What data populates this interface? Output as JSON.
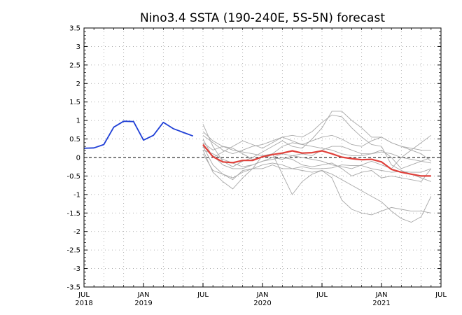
{
  "chart_data": {
    "type": "line",
    "title": "Nino3.4 SSTA (190-240E, 5S-5N) forecast",
    "xlabel": "",
    "ylabel": "",
    "ylim": [
      -3.5,
      3.5
    ],
    "xlim_months": [
      "2018-07",
      "2021-07"
    ],
    "grid": true,
    "zero_line": "dashed",
    "y_ticks": [
      "-3.5",
      "-3",
      "-2.5",
      "-2",
      "-1.5",
      "-1",
      "-0.5",
      "0",
      "0.5",
      "1",
      "1.5",
      "2",
      "2.5",
      "3",
      "3.5"
    ],
    "x_ticks": [
      {
        "month": "JUL",
        "year": "2018"
      },
      {
        "month": "JAN",
        "year": "2019"
      },
      {
        "month": "JUL",
        "year": ""
      },
      {
        "month": "JAN",
        "year": "2020"
      },
      {
        "month": "JUL",
        "year": ""
      },
      {
        "month": "JAN",
        "year": "2021"
      },
      {
        "month": "JUL",
        "year": ""
      }
    ],
    "colors": {
      "observed": "#1f3fd6",
      "ensemble_mean": "#e0403a",
      "members": "#a8a8a8"
    },
    "observed": {
      "x": [
        "2018-07",
        "2018-08",
        "2018-09",
        "2018-10",
        "2018-11",
        "2018-12",
        "2019-01",
        "2019-02",
        "2019-03",
        "2019-04",
        "2019-05",
        "2019-06"
      ],
      "y": [
        0.25,
        0.26,
        0.35,
        0.82,
        0.98,
        0.97,
        0.47,
        0.6,
        0.95,
        0.78,
        0.68,
        0.58
      ]
    },
    "ensemble_mean": {
      "x": [
        "2019-07",
        "2019-08",
        "2019-09",
        "2019-10",
        "2019-11",
        "2019-12",
        "2020-01",
        "2020-02",
        "2020-03",
        "2020-04",
        "2020-05",
        "2020-06",
        "2020-07",
        "2020-08",
        "2020-09",
        "2020-10",
        "2020-11",
        "2020-12",
        "2021-01",
        "2021-02",
        "2021-03",
        "2021-04",
        "2021-05",
        "2021-06"
      ],
      "y": [
        0.35,
        0.02,
        -0.12,
        -0.14,
        -0.08,
        -0.08,
        0.02,
        0.08,
        0.12,
        0.18,
        0.12,
        0.13,
        0.18,
        0.1,
        0.01,
        -0.03,
        -0.06,
        -0.05,
        -0.12,
        -0.32,
        -0.4,
        -0.45,
        -0.5,
        -0.5
      ]
    },
    "members": [
      {
        "y": [
          0.3,
          -0.2,
          -0.45,
          -0.6,
          -0.35,
          -0.3,
          -0.3,
          -0.2,
          -0.3,
          -0.3,
          -0.25,
          -0.3,
          -0.3,
          -0.28,
          -0.2,
          -0.22,
          -0.22,
          -0.3,
          -0.35,
          -0.4,
          -0.38,
          -0.4,
          -0.4,
          -0.3
        ]
      },
      {
        "y": [
          0.6,
          0.4,
          0.2,
          0.1,
          0.2,
          0.3,
          0.35,
          0.45,
          0.55,
          0.6,
          0.55,
          0.7,
          0.95,
          1.15,
          1.1,
          0.8,
          0.55,
          0.35,
          0.3,
          -0.2,
          -0.35,
          -0.45,
          -0.55,
          -0.65
        ]
      },
      {
        "y": [
          0.9,
          0.3,
          -0.1,
          -0.25,
          -0.1,
          0.0,
          0.15,
          0.3,
          0.45,
          0.3,
          0.25,
          0.5,
          0.8,
          1.25,
          1.25,
          1.0,
          0.8,
          0.55,
          0.55,
          0.4,
          0.3,
          0.2,
          0.1,
          -0.1
        ]
      },
      {
        "y": [
          0.2,
          -0.4,
          -0.65,
          -0.85,
          -0.55,
          -0.3,
          0.05,
          0.1,
          -0.45,
          -1.0,
          -0.65,
          -0.45,
          -0.35,
          -0.55,
          -1.15,
          -1.4,
          -1.5,
          -1.55,
          -1.45,
          -1.35,
          -1.4,
          -1.45,
          -1.45,
          -1.5
        ]
      },
      {
        "y": [
          0.4,
          0.2,
          0.3,
          0.2,
          0.15,
          0.1,
          0.05,
          0.0,
          -0.05,
          0.05,
          0.1,
          0.05,
          0.2,
          0.3,
          0.3,
          0.2,
          0.1,
          0.1,
          0.2,
          0.0,
          -0.3,
          -0.2,
          -0.1,
          0.0
        ]
      },
      {
        "y": [
          0.1,
          -0.35,
          -0.45,
          -0.55,
          -0.4,
          -0.3,
          -0.2,
          -0.15,
          -0.2,
          -0.3,
          -0.35,
          -0.4,
          -0.35,
          -0.45,
          -0.6,
          -0.75,
          -0.9,
          -1.05,
          -1.2,
          -1.45,
          -1.65,
          -1.75,
          -1.6,
          -1.05
        ]
      },
      {
        "y": [
          0.5,
          0.0,
          0.15,
          0.3,
          0.45,
          0.35,
          0.25,
          0.4,
          0.55,
          0.45,
          0.35,
          0.45,
          0.55,
          0.6,
          0.5,
          0.35,
          0.3,
          0.45,
          0.55,
          0.4,
          0.3,
          0.25,
          0.2,
          0.2
        ]
      },
      {
        "y": [
          0.2,
          0.1,
          -0.05,
          -0.15,
          -0.25,
          -0.2,
          -0.1,
          -0.05,
          0.0,
          -0.05,
          -0.2,
          -0.25,
          -0.2,
          -0.15,
          -0.3,
          -0.5,
          -0.4,
          -0.35,
          -0.55,
          -0.5,
          -0.55,
          -0.6,
          -0.65,
          -0.3
        ]
      },
      {
        "y": [
          0.7,
          0.45,
          0.3,
          0.25,
          0.1,
          -0.05,
          0.0,
          0.1,
          0.3,
          0.4,
          0.35,
          0.3,
          0.25,
          0.2,
          0.1,
          0.05,
          0.05,
          0.1,
          0.15,
          0.1,
          0.0,
          -0.05,
          -0.1,
          -0.15
        ]
      },
      {
        "y": [
          0.3,
          0.05,
          -0.2,
          -0.3,
          -0.3,
          -0.2,
          -0.1,
          0.0,
          0.1,
          0.05,
          0.0,
          -0.05,
          -0.1,
          -0.2,
          -0.25,
          -0.3,
          -0.2,
          -0.1,
          -0.2,
          -0.3,
          0.0,
          0.2,
          0.4,
          0.6
        ]
      }
    ]
  }
}
